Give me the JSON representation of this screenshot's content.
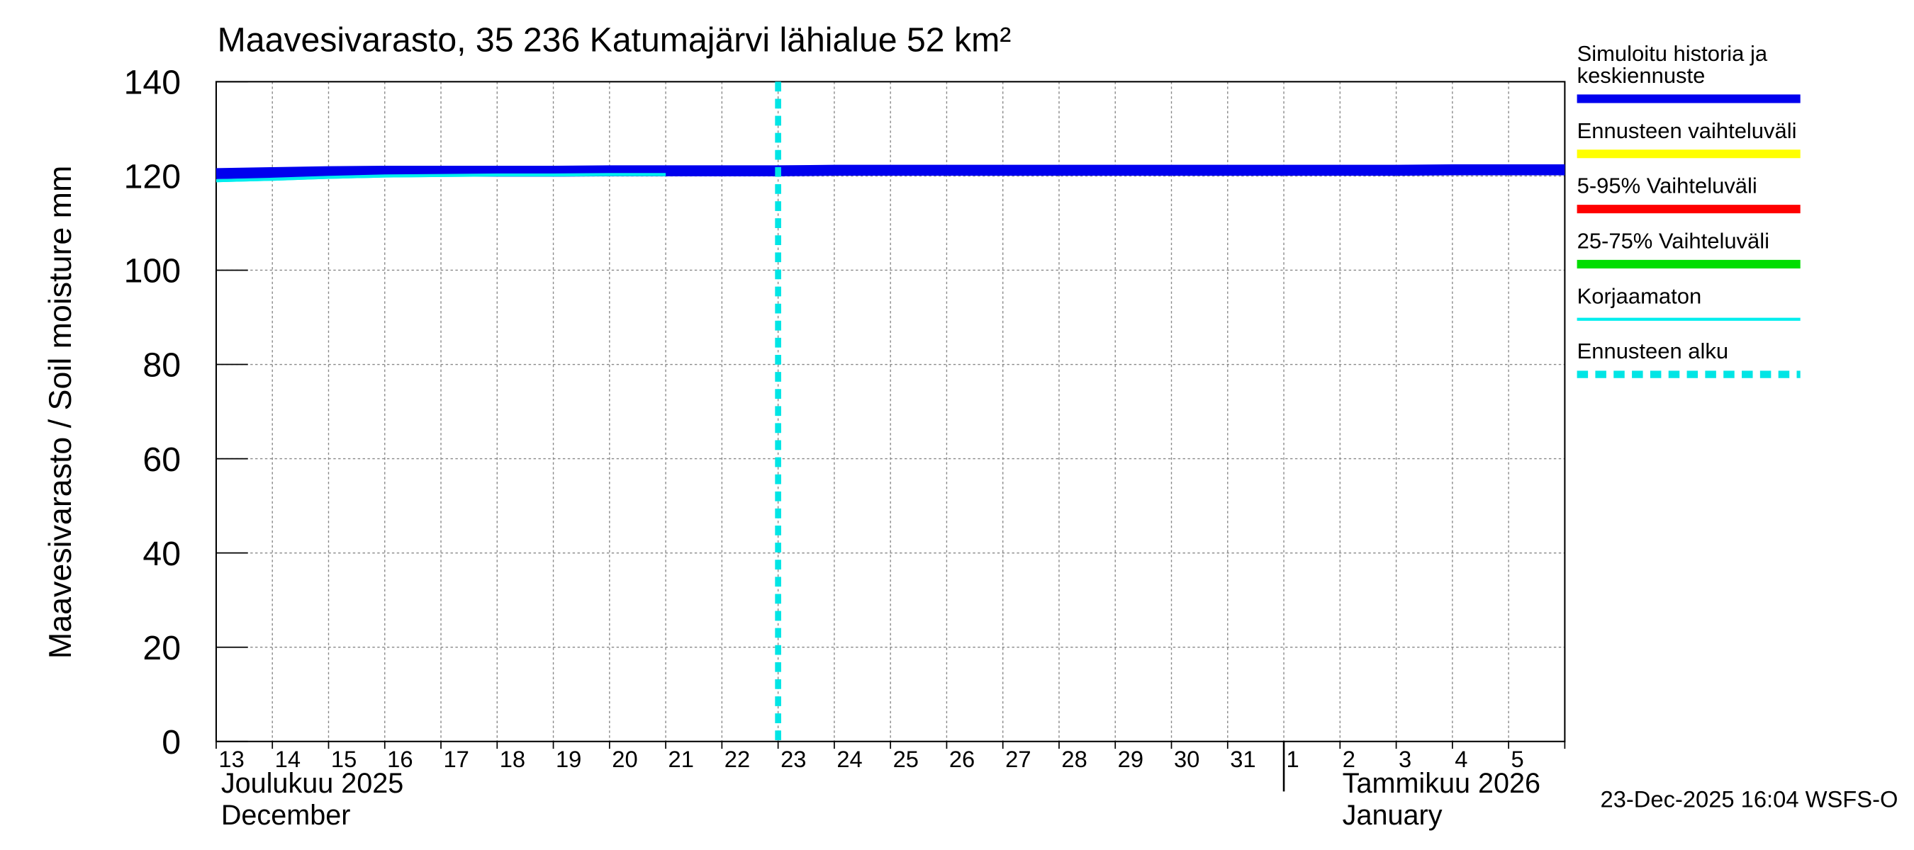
{
  "chart_data": {
    "type": "line",
    "title": "Maavesivarasto, 35 236 Katumajärvi lähialue 52 km²",
    "y_label": "Maavesivarasto / Soil moisture   mm",
    "categories": [
      "13",
      "14",
      "15",
      "16",
      "17",
      "18",
      "19",
      "20",
      "21",
      "22",
      "23",
      "24",
      "25",
      "26",
      "27",
      "28",
      "29",
      "30",
      "31",
      "1",
      "2",
      "3",
      "4",
      "5",
      null
    ],
    "month_labels": [
      {
        "at": 0,
        "lines": [
          "Joulukuu  2025",
          "December"
        ]
      },
      {
        "at": 19,
        "lines": [
          "Tammikuu  2026",
          "January"
        ]
      }
    ],
    "ylim": [
      0,
      140
    ],
    "yticks": [
      0,
      20,
      40,
      60,
      80,
      100,
      120,
      140
    ],
    "grid": true,
    "series": [
      {
        "name": "Simuloitu historia ja keskiennuste",
        "color": "#0000ee",
        "width": 9,
        "values": [
          120.5,
          120.7,
          120.9,
          121,
          121,
          121,
          121,
          121.1,
          121.1,
          121.1,
          121.1,
          121.2,
          121.2,
          121.2,
          121.2,
          121.2,
          121.2,
          121.2,
          121.2,
          121.2,
          121.2,
          121.2,
          121.3,
          121.3,
          121.3
        ]
      },
      {
        "name": "Ennusteen vaihteluväli",
        "color": "#ffff00",
        "width": 7,
        "values": [
          null,
          null,
          null,
          null,
          null,
          null,
          null,
          null,
          null,
          null,
          null,
          null,
          null,
          null,
          null,
          null,
          null,
          null,
          null,
          null,
          null,
          null,
          null,
          null,
          null
        ]
      },
      {
        "name": "5-95% Vaihteluväli",
        "color": "#ff0000",
        "width": 7,
        "values": [
          null,
          null,
          null,
          null,
          null,
          null,
          null,
          null,
          null,
          null,
          null,
          null,
          null,
          null,
          null,
          null,
          null,
          null,
          null,
          null,
          null,
          null,
          null,
          null,
          null
        ]
      },
      {
        "name": "25-75% Vaihteluväli",
        "color": "#00dd00",
        "width": 7,
        "values": [
          null,
          null,
          null,
          null,
          null,
          null,
          null,
          null,
          null,
          null,
          null,
          null,
          null,
          null,
          null,
          null,
          null,
          null,
          null,
          null,
          null,
          null,
          null,
          null,
          null
        ]
      },
      {
        "name": "Korjaamaton",
        "color": "#00eeee",
        "width": 2.5,
        "values": [
          119,
          119.3,
          119.7,
          120,
          120.1,
          120.2,
          120.2,
          120.3,
          120.3,
          null,
          null,
          null,
          null,
          null,
          null,
          null,
          null,
          null,
          null,
          null,
          null,
          null,
          null,
          null,
          null
        ]
      }
    ],
    "forecast_start": {
      "name": "Ennusteen alku",
      "at": 10,
      "color": "#00e5e5"
    },
    "footer": "23-Dec-2025 16:04 WSFS-O"
  }
}
